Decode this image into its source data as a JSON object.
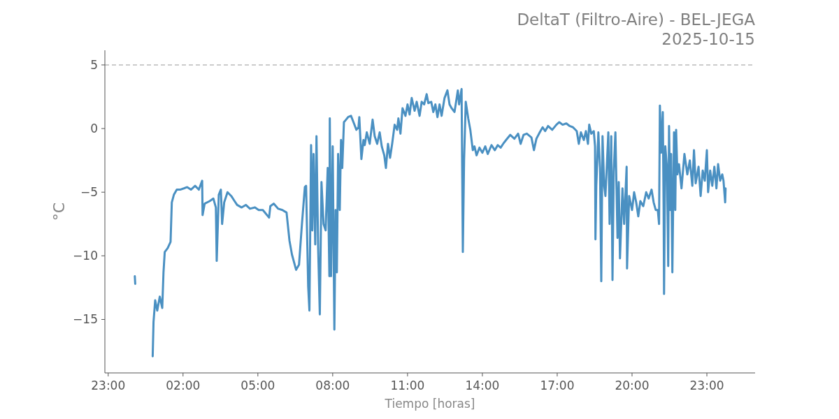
{
  "chart_data": {
    "type": "line",
    "title": "DeltaT (Filtro-Aire) - BEL-JEGA\n2025-10-15",
    "xlabel": "Tiempo [horas]",
    "ylabel": "°C",
    "xlim": [
      "2025-10-14T22:52",
      "2025-10-16T00:56"
    ],
    "ylim": [
      -19.2,
      6.15
    ],
    "xticks": [
      {
        "value": "2025-10-14T23:00",
        "label": "23:00"
      },
      {
        "value": "2025-10-15T02:00",
        "label": "02:00"
      },
      {
        "value": "2025-10-15T05:00",
        "label": "05:00"
      },
      {
        "value": "2025-10-15T08:00",
        "label": "08:00"
      },
      {
        "value": "2025-10-15T11:00",
        "label": "11:00"
      },
      {
        "value": "2025-10-15T14:00",
        "label": "14:00"
      },
      {
        "value": "2025-10-15T17:00",
        "label": "17:00"
      },
      {
        "value": "2025-10-15T20:00",
        "label": "20:00"
      },
      {
        "value": "2025-10-15T23:00",
        "label": "23:00"
      }
    ],
    "yticks": [
      {
        "value": -15,
        "label": "−15"
      },
      {
        "value": -10,
        "label": "−10"
      },
      {
        "value": -5,
        "label": "−5"
      },
      0,
      5
    ],
    "grid": false,
    "line_style": "solid",
    "marker": "none",
    "ref_lines": [
      {
        "axis": "y",
        "value": 5,
        "color": "#bbbbbb",
        "line_style": "dashed"
      }
    ],
    "x": [
      "2025-10-15T00:04",
      "2025-10-15T00:05",
      "2025-10-15T00:30",
      "2025-10-15T00:47",
      "2025-10-15T00:49",
      "2025-10-15T00:53",
      "2025-10-15T00:58",
      "2025-10-15T01:04",
      "2025-10-15T01:10",
      "2025-10-15T01:13",
      "2025-10-15T01:16",
      "2025-10-15T01:23",
      "2025-10-15T01:30",
      "2025-10-15T01:33",
      "2025-10-15T01:38",
      "2025-10-15T01:45",
      "2025-10-15T01:53",
      "2025-10-15T02:02",
      "2025-10-15T02:10",
      "2025-10-15T02:19",
      "2025-10-15T02:29",
      "2025-10-15T02:38",
      "2025-10-15T02:46",
      "2025-10-15T02:47",
      "2025-10-15T02:52",
      "2025-10-15T03:04",
      "2025-10-15T03:13",
      "2025-10-15T03:19",
      "2025-10-15T03:21",
      "2025-10-15T03:26",
      "2025-10-15T03:31",
      "2025-10-15T03:34",
      "2025-10-15T03:39",
      "2025-10-15T03:47",
      "2025-10-15T03:56",
      "2025-10-15T04:04",
      "2025-10-15T04:10",
      "2025-10-15T04:21",
      "2025-10-15T04:31",
      "2025-10-15T04:41",
      "2025-10-15T04:53",
      "2025-10-15T05:02",
      "2025-10-15T05:12",
      "2025-10-15T05:27",
      "2025-10-15T05:30",
      "2025-10-15T05:38",
      "2025-10-15T05:49",
      "2025-10-15T05:59",
      "2025-10-15T06:09",
      "2025-10-15T06:16",
      "2025-10-15T06:22",
      "2025-10-15T06:32",
      "2025-10-15T06:39",
      "2025-10-15T06:46",
      "2025-10-15T06:53",
      "2025-10-15T06:56",
      "2025-10-15T07:01",
      "2025-10-15T07:04",
      "2025-10-15T07:08",
      "2025-10-15T07:11",
      "2025-10-15T07:14",
      "2025-10-15T07:18",
      "2025-10-15T07:21",
      "2025-10-15T07:25",
      "2025-10-15T07:29",
      "2025-10-15T07:33",
      "2025-10-15T07:38",
      "2025-10-15T07:43",
      "2025-10-15T07:48",
      "2025-10-15T07:52",
      "2025-10-15T07:53",
      "2025-10-15T07:56",
      "2025-10-15T08:00",
      "2025-10-15T08:04",
      "2025-10-15T08:07",
      "2025-10-15T08:10",
      "2025-10-15T08:13",
      "2025-10-15T08:17",
      "2025-10-15T08:20",
      "2025-10-15T08:23",
      "2025-10-15T08:27",
      "2025-10-15T08:32",
      "2025-10-15T08:37",
      "2025-10-15T08:44",
      "2025-10-15T08:50",
      "2025-10-15T08:57",
      "2025-10-15T09:02",
      "2025-10-15T09:04",
      "2025-10-15T09:09",
      "2025-10-15T09:14",
      "2025-10-15T09:17",
      "2025-10-15T09:22",
      "2025-10-15T09:29",
      "2025-10-15T09:36",
      "2025-10-15T09:41",
      "2025-10-15T09:47",
      "2025-10-15T09:53",
      "2025-10-15T09:58",
      "2025-10-15T10:04",
      "2025-10-15T10:08",
      "2025-10-15T10:13",
      "2025-10-15T10:18",
      "2025-10-15T10:23",
      "2025-10-15T10:29",
      "2025-10-15T10:35",
      "2025-10-15T10:38",
      "2025-10-15T10:43",
      "2025-10-15T10:48",
      "2025-10-15T10:55",
      "2025-10-15T11:00",
      "2025-10-15T11:05",
      "2025-10-15T11:10",
      "2025-10-15T11:17",
      "2025-10-15T11:22",
      "2025-10-15T11:29",
      "2025-10-15T11:34",
      "2025-10-15T11:40",
      "2025-10-15T11:46",
      "2025-10-15T11:50",
      "2025-10-15T11:57",
      "2025-10-15T12:02",
      "2025-10-15T12:07",
      "2025-10-15T12:12",
      "2025-10-15T12:17",
      "2025-10-15T12:22",
      "2025-10-15T12:29",
      "2025-10-15T12:36",
      "2025-10-15T12:41",
      "2025-10-15T12:46",
      "2025-10-15T12:53",
      "2025-10-15T13:01",
      "2025-10-15T13:04",
      "2025-10-15T13:10",
      "2025-10-15T13:13",
      "2025-10-15T13:16",
      "2025-10-15T13:20",
      "2025-10-15T13:26",
      "2025-10-15T13:31",
      "2025-10-15T13:37",
      "2025-10-15T13:41",
      "2025-10-15T13:46",
      "2025-10-15T13:53",
      "2025-10-15T14:00",
      "2025-10-15T14:07",
      "2025-10-15T14:13",
      "2025-10-15T14:22",
      "2025-10-15T14:30",
      "2025-10-15T14:37",
      "2025-10-15T14:44",
      "2025-10-15T14:50",
      "2025-10-15T14:57",
      "2025-10-15T15:07",
      "2025-10-15T15:17",
      "2025-10-15T15:26",
      "2025-10-15T15:32",
      "2025-10-15T15:39",
      "2025-10-15T15:47",
      "2025-10-15T15:58",
      "2025-10-15T16:04",
      "2025-10-15T16:10",
      "2025-10-15T16:18",
      "2025-10-15T16:25",
      "2025-10-15T16:31",
      "2025-10-15T16:38",
      "2025-10-15T16:48",
      "2025-10-15T16:58",
      "2025-10-15T17:05",
      "2025-10-15T17:13",
      "2025-10-15T17:22",
      "2025-10-15T17:30",
      "2025-10-15T17:38",
      "2025-10-15T17:47",
      "2025-10-15T17:52",
      "2025-10-15T17:57",
      "2025-10-15T18:04",
      "2025-10-15T18:09",
      "2025-10-15T18:14",
      "2025-10-15T18:17",
      "2025-10-15T18:22",
      "2025-10-15T18:28",
      "2025-10-15T18:31",
      "2025-10-15T18:32",
      "2025-10-15T18:34",
      "2025-10-15T18:39",
      "2025-10-15T18:43",
      "2025-10-15T18:46",
      "2025-10-15T18:49",
      "2025-10-15T18:53",
      "2025-10-15T18:56",
      "2025-10-15T19:03",
      "2025-10-15T19:06",
      "2025-10-15T19:10",
      "2025-10-15T19:13",
      "2025-10-15T19:16",
      "2025-10-15T19:20",
      "2025-10-15T19:25",
      "2025-10-15T19:28",
      "2025-10-15T19:31",
      "2025-10-15T19:37",
      "2025-10-15T19:41",
      "2025-10-15T19:47",
      "2025-10-15T19:48",
      "2025-10-15T19:53",
      "2025-10-15T20:00",
      "2025-10-15T20:05",
      "2025-10-15T20:10",
      "2025-10-15T20:15",
      "2025-10-15T20:20",
      "2025-10-15T20:27",
      "2025-10-15T20:34",
      "2025-10-15T20:40",
      "2025-10-15T20:47",
      "2025-10-15T20:52",
      "2025-10-15T20:57",
      "2025-10-15T21:02",
      "2025-10-15T21:05",
      "2025-10-15T21:07",
      "2025-10-15T21:10",
      "2025-10-15T21:14",
      "2025-10-15T21:16",
      "2025-10-15T21:17",
      "2025-10-15T21:20",
      "2025-10-15T21:24",
      "2025-10-15T21:27",
      "2025-10-15T21:29",
      "2025-10-15T21:32",
      "2025-10-15T21:34",
      "2025-10-15T21:37",
      "2025-10-15T21:41",
      "2025-10-15T21:44",
      "2025-10-15T21:46",
      "2025-10-15T21:49",
      "2025-10-15T21:53",
      "2025-10-15T21:59",
      "2025-10-15T22:06",
      "2025-10-15T22:13",
      "2025-10-15T22:19",
      "2025-10-15T22:25",
      "2025-10-15T22:29",
      "2025-10-15T22:33",
      "2025-10-15T22:40",
      "2025-10-15T22:45",
      "2025-10-15T22:50",
      "2025-10-15T22:55",
      "2025-10-15T23:00",
      "2025-10-15T23:03",
      "2025-10-15T23:08",
      "2025-10-15T23:13",
      "2025-10-15T23:18",
      "2025-10-15T23:23",
      "2025-10-15T23:27",
      "2025-10-15T23:32",
      "2025-10-15T23:37",
      "2025-10-15T23:40",
      "2025-10-15T23:44",
      "2025-10-15T23:45"
    ],
    "series": [
      {
        "color": "#4a90c2",
        "values": [
          -11.6,
          -12.2,
          null,
          -17.9,
          -15.2,
          -13.5,
          -14.3,
          -13.2,
          -14.1,
          -11.3,
          -9.7,
          -9.4,
          -8.9,
          -5.8,
          -5.2,
          -4.8,
          -4.8,
          -4.7,
          -4.6,
          -4.8,
          -4.5,
          -4.8,
          -4.1,
          -6.8,
          -5.9,
          -5.7,
          -5.5,
          -6.2,
          -10.4,
          -5.2,
          -4.8,
          -7.5,
          -5.8,
          -5.0,
          -5.3,
          -5.7,
          -6.0,
          -6.2,
          -6.0,
          -6.3,
          -6.2,
          -6.4,
          -6.4,
          -7.0,
          -6.1,
          -5.9,
          -6.3,
          -6.4,
          -6.6,
          -8.8,
          -9.9,
          -11.1,
          -10.7,
          -7.5,
          -4.6,
          -4.5,
          -12.4,
          -14.3,
          -1.3,
          -8.0,
          -2.0,
          -9.1,
          -0.6,
          -9.4,
          -14.6,
          -4.2,
          -7.5,
          -8.0,
          -3.1,
          -11.6,
          0.8,
          -11.6,
          -1.4,
          -15.8,
          -6.4,
          -11.3,
          -2.0,
          -6.4,
          -0.9,
          -3.1,
          0.5,
          0.7,
          0.9,
          1.0,
          0.5,
          -0.1,
          0.1,
          0.9,
          -2.4,
          -0.9,
          -1.3,
          -0.3,
          -1.2,
          0.7,
          -0.6,
          -1.2,
          -0.3,
          -1.4,
          -2.1,
          -3.1,
          -1.2,
          -2.3,
          -1.2,
          0.3,
          -0.1,
          0.8,
          -0.4,
          1.6,
          1.0,
          1.9,
          1.1,
          2.4,
          1.4,
          2.1,
          1.0,
          2.1,
          1.9,
          2.7,
          2.0,
          2.1,
          1.3,
          1.9,
          0.9,
          1.9,
          1.0,
          2.4,
          3.0,
          1.9,
          1.6,
          1.3,
          3.0,
          1.9,
          3.1,
          -9.7,
          -2.5,
          2.1,
          0.8,
          -0.1,
          -1.7,
          -1.4,
          -2.1,
          -1.5,
          -1.9,
          -1.4,
          -2.0,
          -1.3,
          -1.7,
          -1.3,
          -1.5,
          -1.2,
          -0.9,
          -0.5,
          -0.8,
          -0.4,
          -1.2,
          -0.5,
          -0.4,
          -0.7,
          -1.7,
          -0.8,
          -0.3,
          0.1,
          -0.2,
          0.2,
          -0.1,
          0.3,
          0.5,
          0.3,
          0.4,
          0.2,
          0.1,
          -0.2,
          -1.2,
          -0.3,
          -0.9,
          -0.2,
          -1.2,
          0.3,
          -0.4,
          -0.2,
          -1.4,
          -8.7,
          -4.5,
          -0.3,
          -3.1,
          -12.0,
          -0.6,
          -4.5,
          -5.3,
          -0.3,
          -7.5,
          -0.6,
          -11.9,
          -3.4,
          -0.3,
          -8.6,
          -4.2,
          -10.2,
          -4.7,
          -7.5,
          -3.0,
          -11.0,
          -5.3,
          -6.4,
          -5.0,
          -5.8,
          -6.9,
          -5.7,
          -6.1,
          -5.0,
          -5.5,
          -4.8,
          -5.8,
          -6.4,
          -6.4,
          -7.5,
          1.8,
          -1.9,
          1.3,
          -6.4,
          -13.0,
          -1.4,
          -3.1,
          -10.8,
          0.2,
          -6.4,
          -2.0,
          -11.3,
          -0.3,
          -6.4,
          -0.1,
          -3.6,
          -2.8,
          -4.7,
          -2.0,
          -3.6,
          -2.5,
          -4.5,
          -1.7,
          -4.3,
          -3.0,
          -5.3,
          -3.3,
          -4.1,
          -1.7,
          -5.0,
          -3.3,
          -4.5,
          -3.0,
          -4.7,
          -2.8,
          -4.1,
          -3.6,
          -4.1,
          -5.8,
          -4.7
        ]
      }
    ]
  }
}
